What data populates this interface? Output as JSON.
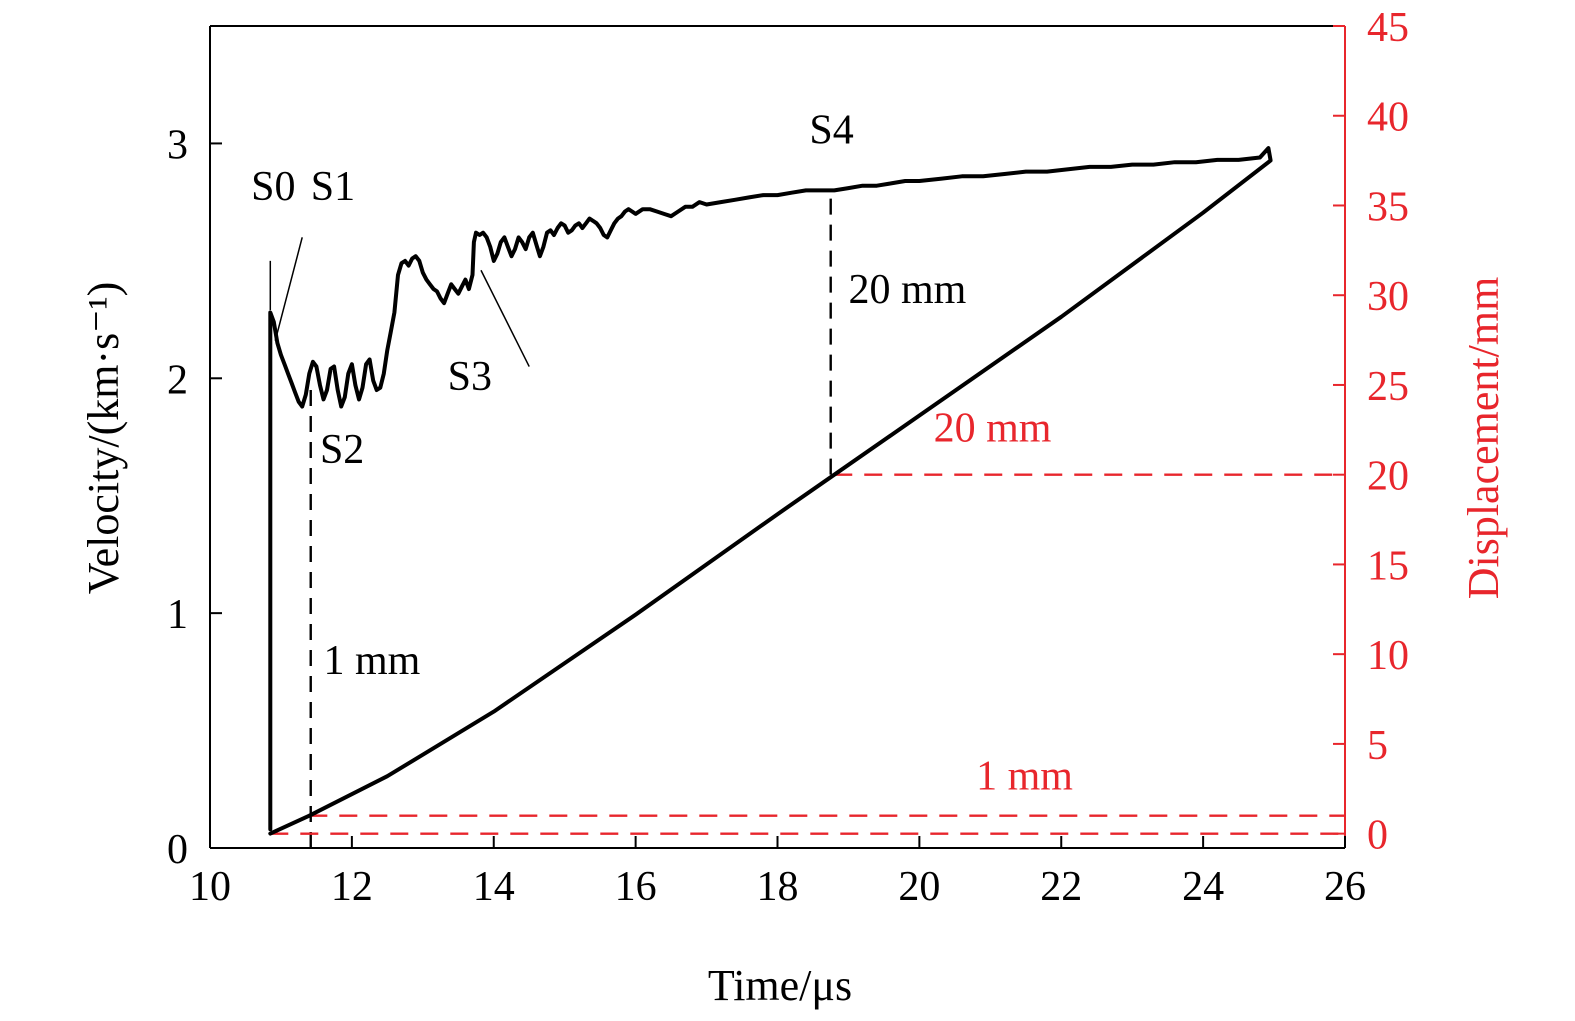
{
  "chart_data": {
    "type": "line",
    "xlabel": "Time/μs",
    "ylabel_left": "Velocity/(km·s⁻¹)",
    "ylabel_right": "Displacement/mm",
    "xlim": [
      10,
      26
    ],
    "ylim_left": [
      0,
      3.5
    ],
    "ylim_right": [
      -0.8,
      45
    ],
    "x_ticks": [
      10,
      12,
      14,
      16,
      18,
      20,
      22,
      24,
      26
    ],
    "y_left_ticks": [
      0,
      1,
      2,
      3
    ],
    "y_right_ticks": [
      0,
      5,
      10,
      15,
      20,
      25,
      30,
      35,
      40,
      45
    ],
    "grid": false,
    "series": [
      {
        "axis": "left",
        "color": "#000000",
        "points": [
          [
            10.85,
            0.08
          ],
          [
            10.85,
            2.28
          ],
          [
            10.9,
            2.24
          ],
          [
            10.95,
            2.15
          ],
          [
            11.0,
            2.1
          ],
          [
            11.05,
            2.06
          ],
          [
            11.1,
            2.02
          ],
          [
            11.15,
            1.98
          ],
          [
            11.2,
            1.94
          ],
          [
            11.25,
            1.9
          ],
          [
            11.3,
            1.88
          ],
          [
            11.35,
            1.93
          ],
          [
            11.4,
            2.02
          ],
          [
            11.45,
            2.07
          ],
          [
            11.5,
            2.05
          ],
          [
            11.55,
            1.97
          ],
          [
            11.6,
            1.91
          ],
          [
            11.65,
            1.95
          ],
          [
            11.7,
            2.04
          ],
          [
            11.75,
            2.05
          ],
          [
            11.8,
            1.95
          ],
          [
            11.85,
            1.88
          ],
          [
            11.9,
            1.92
          ],
          [
            11.95,
            2.02
          ],
          [
            12.0,
            2.06
          ],
          [
            12.05,
            1.97
          ],
          [
            12.1,
            1.91
          ],
          [
            12.15,
            1.96
          ],
          [
            12.2,
            2.06
          ],
          [
            12.25,
            2.08
          ],
          [
            12.3,
            1.99
          ],
          [
            12.35,
            1.95
          ],
          [
            12.4,
            1.96
          ],
          [
            12.45,
            2.02
          ],
          [
            12.5,
            2.12
          ],
          [
            12.55,
            2.2
          ],
          [
            12.6,
            2.28
          ],
          [
            12.65,
            2.44
          ],
          [
            12.7,
            2.49
          ],
          [
            12.75,
            2.5
          ],
          [
            12.8,
            2.48
          ],
          [
            12.85,
            2.51
          ],
          [
            12.9,
            2.52
          ],
          [
            12.95,
            2.5
          ],
          [
            13.0,
            2.45
          ],
          [
            13.05,
            2.42
          ],
          [
            13.1,
            2.4
          ],
          [
            13.15,
            2.38
          ],
          [
            13.2,
            2.37
          ],
          [
            13.25,
            2.34
          ],
          [
            13.3,
            2.32
          ],
          [
            13.35,
            2.36
          ],
          [
            13.4,
            2.4
          ],
          [
            13.45,
            2.38
          ],
          [
            13.5,
            2.36
          ],
          [
            13.55,
            2.39
          ],
          [
            13.6,
            2.42
          ],
          [
            13.65,
            2.38
          ],
          [
            13.7,
            2.44
          ],
          [
            13.72,
            2.58
          ],
          [
            13.75,
            2.62
          ],
          [
            13.8,
            2.61
          ],
          [
            13.85,
            2.62
          ],
          [
            13.9,
            2.6
          ],
          [
            13.95,
            2.56
          ],
          [
            14.0,
            2.5
          ],
          [
            14.05,
            2.53
          ],
          [
            14.1,
            2.58
          ],
          [
            14.15,
            2.6
          ],
          [
            14.2,
            2.56
          ],
          [
            14.25,
            2.52
          ],
          [
            14.3,
            2.55
          ],
          [
            14.35,
            2.6
          ],
          [
            14.4,
            2.58
          ],
          [
            14.45,
            2.55
          ],
          [
            14.5,
            2.6
          ],
          [
            14.55,
            2.62
          ],
          [
            14.6,
            2.57
          ],
          [
            14.65,
            2.52
          ],
          [
            14.7,
            2.56
          ],
          [
            14.75,
            2.62
          ],
          [
            14.8,
            2.63
          ],
          [
            14.85,
            2.61
          ],
          [
            14.9,
            2.64
          ],
          [
            14.95,
            2.66
          ],
          [
            15.0,
            2.65
          ],
          [
            15.05,
            2.62
          ],
          [
            15.1,
            2.63
          ],
          [
            15.15,
            2.65
          ],
          [
            15.2,
            2.66
          ],
          [
            15.25,
            2.64
          ],
          [
            15.3,
            2.66
          ],
          [
            15.35,
            2.68
          ],
          [
            15.4,
            2.67
          ],
          [
            15.45,
            2.66
          ],
          [
            15.5,
            2.64
          ],
          [
            15.55,
            2.61
          ],
          [
            15.6,
            2.6
          ],
          [
            15.65,
            2.63
          ],
          [
            15.7,
            2.66
          ],
          [
            15.75,
            2.68
          ],
          [
            15.8,
            2.69
          ],
          [
            15.85,
            2.71
          ],
          [
            15.9,
            2.72
          ],
          [
            15.95,
            2.71
          ],
          [
            16.0,
            2.7
          ],
          [
            16.1,
            2.72
          ],
          [
            16.2,
            2.72
          ],
          [
            16.3,
            2.71
          ],
          [
            16.4,
            2.7
          ],
          [
            16.5,
            2.69
          ],
          [
            16.6,
            2.71
          ],
          [
            16.7,
            2.73
          ],
          [
            16.8,
            2.73
          ],
          [
            16.9,
            2.75
          ],
          [
            17.0,
            2.74
          ],
          [
            17.2,
            2.75
          ],
          [
            17.4,
            2.76
          ],
          [
            17.6,
            2.77
          ],
          [
            17.8,
            2.78
          ],
          [
            18.0,
            2.78
          ],
          [
            18.2,
            2.79
          ],
          [
            18.4,
            2.8
          ],
          [
            18.6,
            2.8
          ],
          [
            18.8,
            2.8
          ],
          [
            19.0,
            2.81
          ],
          [
            19.2,
            2.82
          ],
          [
            19.4,
            2.82
          ],
          [
            19.6,
            2.83
          ],
          [
            19.8,
            2.84
          ],
          [
            20.0,
            2.84
          ],
          [
            20.3,
            2.85
          ],
          [
            20.6,
            2.86
          ],
          [
            20.9,
            2.86
          ],
          [
            21.2,
            2.87
          ],
          [
            21.5,
            2.88
          ],
          [
            21.8,
            2.88
          ],
          [
            22.1,
            2.89
          ],
          [
            22.4,
            2.9
          ],
          [
            22.7,
            2.9
          ],
          [
            23.0,
            2.91
          ],
          [
            23.3,
            2.91
          ],
          [
            23.6,
            2.92
          ],
          [
            23.9,
            2.92
          ],
          [
            24.2,
            2.93
          ],
          [
            24.5,
            2.93
          ],
          [
            24.8,
            2.94
          ],
          [
            24.92,
            2.98
          ],
          [
            24.95,
            2.93
          ]
        ]
      },
      {
        "axis": "right",
        "color": "#000000",
        "points": [
          [
            10.85,
            0
          ],
          [
            11.4,
            1
          ],
          [
            12.5,
            3.2
          ],
          [
            13.0,
            4.4
          ],
          [
            14.0,
            6.8
          ],
          [
            15.0,
            9.5
          ],
          [
            16.0,
            12.2
          ],
          [
            17.0,
            15.0
          ],
          [
            18.0,
            17.8
          ],
          [
            18.8,
            20.0
          ],
          [
            20.0,
            23.3
          ],
          [
            22.0,
            28.8
          ],
          [
            24.0,
            34.6
          ],
          [
            24.95,
            37.5
          ]
        ]
      }
    ],
    "reference_lines": [
      {
        "type": "vertical",
        "x": 11.42,
        "y_bottom_left": 0,
        "y_top_left": 1.98,
        "color": "#000000"
      },
      {
        "type": "vertical",
        "x": 18.75,
        "y_bottom_left": 1.59,
        "y_top_left": 2.8,
        "color": "#000000"
      },
      {
        "type": "horizontal",
        "axis": "right",
        "y": 20,
        "x_start": 18.8,
        "x_end": 26,
        "color": "#e8262c"
      },
      {
        "type": "horizontal",
        "axis": "right",
        "y": 1,
        "x_start": 11.4,
        "x_end": 26,
        "color": "#e8262c"
      },
      {
        "type": "horizontal",
        "axis": "right",
        "y": 0,
        "x_start": 10.85,
        "x_end": 26,
        "color": "#e8262c"
      }
    ],
    "annotations": [
      {
        "text": "S0",
        "x": 10.58,
        "y_left": 2.76,
        "color": "#000000"
      },
      {
        "text": "S1",
        "x": 11.42,
        "y_left": 2.76,
        "color": "#000000"
      },
      {
        "text": "S2",
        "x": 11.55,
        "y_left": 1.64,
        "color": "#000000"
      },
      {
        "text": "S3",
        "x": 13.35,
        "y_left": 1.95,
        "color": "#000000"
      },
      {
        "text": "S4",
        "x": 18.45,
        "y_left": 3.0,
        "color": "#000000"
      },
      {
        "text": "20 mm",
        "x": 19.0,
        "y_left": 2.32,
        "color": "#000000"
      },
      {
        "text": "1 mm",
        "x": 11.6,
        "y_left": 0.74,
        "color": "#000000"
      },
      {
        "text": "20 mm",
        "x": 20.2,
        "y_left": 1.73,
        "color": "#e8262c"
      },
      {
        "text": "1 mm",
        "x": 20.8,
        "y_left": 0.25,
        "color": "#e8262c"
      }
    ],
    "leader_lines": [
      {
        "from": [
          10.85,
          2.5
        ],
        "to": [
          10.85,
          2.29
        ]
      },
      {
        "from": [
          11.3,
          2.6
        ],
        "to": [
          10.92,
          2.16
        ]
      },
      {
        "from": [
          14.5,
          2.05
        ],
        "to": [
          13.82,
          2.46
        ]
      }
    ],
    "colors": {
      "left_axis": "#000000",
      "right_axis": "#e8262c",
      "data": "#000000"
    }
  }
}
